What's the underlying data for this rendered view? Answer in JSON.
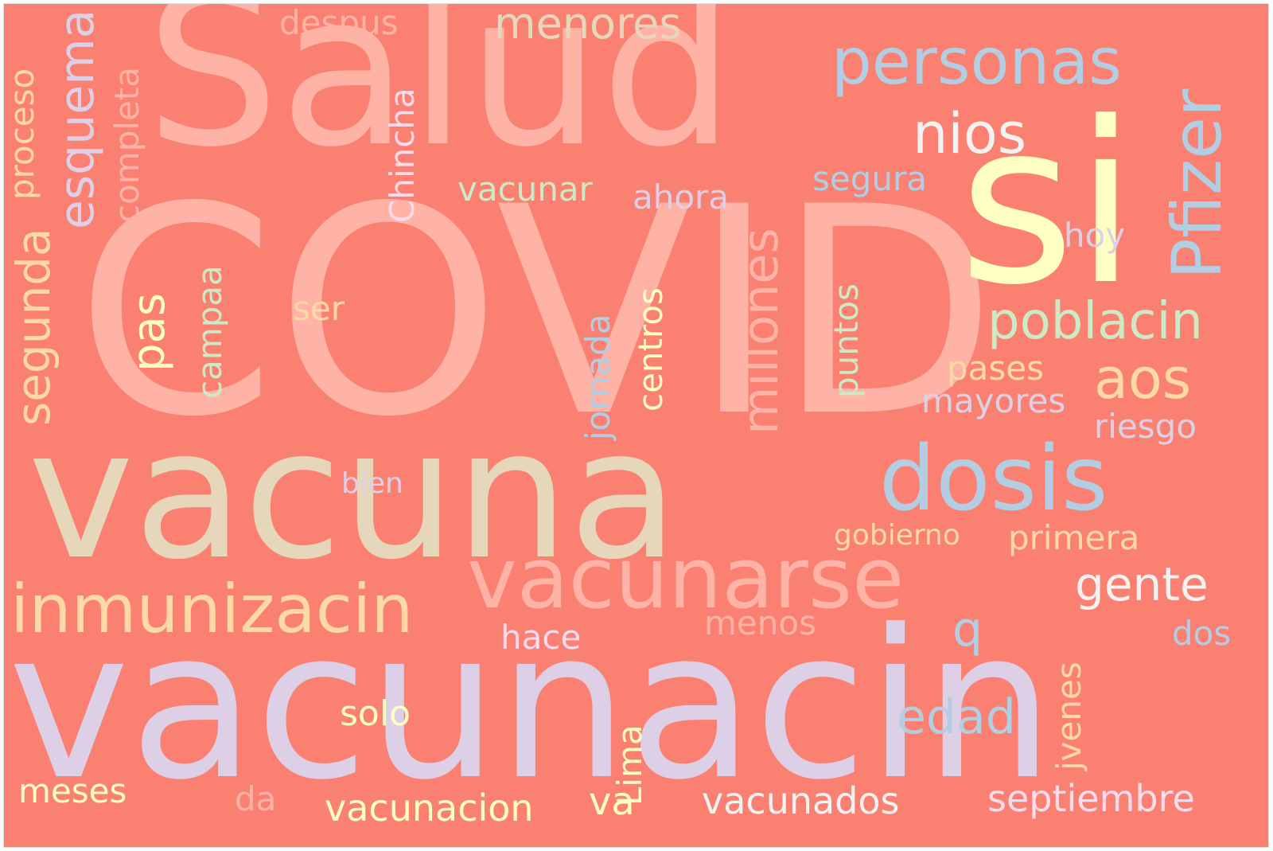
{
  "cloud": {
    "background": "#fa8072",
    "words": [
      {
        "text": "COVID",
        "color": "#ffb3a7"
      },
      {
        "text": "Salud",
        "color": "#ffb3a7"
      },
      {
        "text": "vacuna",
        "color": "#e6d6ba"
      },
      {
        "text": "vacunacin",
        "color": "#ddd0e6"
      },
      {
        "text": "si",
        "color": "#ffffc2"
      },
      {
        "text": "personas",
        "color": "#b3cde3"
      },
      {
        "text": "dosis",
        "color": "#b3cde3"
      },
      {
        "text": "vacunarse",
        "color": "#ffb3a7"
      },
      {
        "text": "inmunizacin",
        "color": "#fed9a6"
      },
      {
        "text": "nios",
        "color": "#f2f2f2"
      },
      {
        "text": "menores",
        "color": "#e6d6ba"
      },
      {
        "text": "Pfizer",
        "color": "#b3cde3"
      },
      {
        "text": "poblacin",
        "color": "#ccebc5"
      },
      {
        "text": "aos",
        "color": "#fed9a6"
      },
      {
        "text": "gente",
        "color": "#f2f2f2"
      },
      {
        "text": "esquema",
        "color": "#ddd0e6"
      },
      {
        "text": "segunda",
        "color": "#fed9a6"
      },
      {
        "text": "millones",
        "color": "#ffb3a7"
      },
      {
        "text": "edad",
        "color": "#b3cde3"
      },
      {
        "text": "septiembre",
        "color": "#fddaec"
      },
      {
        "text": "vacunados",
        "color": "#f2f2f2"
      },
      {
        "text": "vacunacion",
        "color": "#ffffc2"
      },
      {
        "text": "pas",
        "color": "#ffffc2"
      },
      {
        "text": "proceso",
        "color": "#fed9a6"
      },
      {
        "text": "completa",
        "color": "#ffb3a7"
      },
      {
        "text": "Chincha",
        "color": "#fddaec"
      },
      {
        "text": "despus",
        "color": "#ffb3a7"
      },
      {
        "text": "vacunar",
        "color": "#ccebc5"
      },
      {
        "text": "ahora",
        "color": "#ddd0e6"
      },
      {
        "text": "segura",
        "color": "#b3cde3"
      },
      {
        "text": "hoy",
        "color": "#ddd0e6"
      },
      {
        "text": "campaa",
        "color": "#ccebc5"
      },
      {
        "text": "ser",
        "color": "#fed9a6"
      },
      {
        "text": "centros",
        "color": "#ffffc2"
      },
      {
        "text": "jornada",
        "color": "#b3cde3"
      },
      {
        "text": "puntos",
        "color": "#ccebc5"
      },
      {
        "text": "pases",
        "color": "#fed9a6"
      },
      {
        "text": "mayores",
        "color": "#ddd0e6"
      },
      {
        "text": "riesgo",
        "color": "#ddd0e6"
      },
      {
        "text": "bien",
        "color": "#ddd0e6"
      },
      {
        "text": "gobierno",
        "color": "#fed9a6"
      },
      {
        "text": "primera",
        "color": "#fed9a6"
      },
      {
        "text": "menos",
        "color": "#ffb3a7"
      },
      {
        "text": "hace",
        "color": "#fddaec"
      },
      {
        "text": "q",
        "color": "#b3cde3"
      },
      {
        "text": "dos",
        "color": "#b3cde3"
      },
      {
        "text": "jvenes",
        "color": "#fed9a6"
      },
      {
        "text": "solo",
        "color": "#ffffc2"
      },
      {
        "text": "Lima",
        "color": "#ffffc2"
      },
      {
        "text": "meses",
        "color": "#ffffc2"
      },
      {
        "text": "da",
        "color": "#ffb3a7"
      },
      {
        "text": "va",
        "color": "#ffffc2"
      }
    ]
  }
}
